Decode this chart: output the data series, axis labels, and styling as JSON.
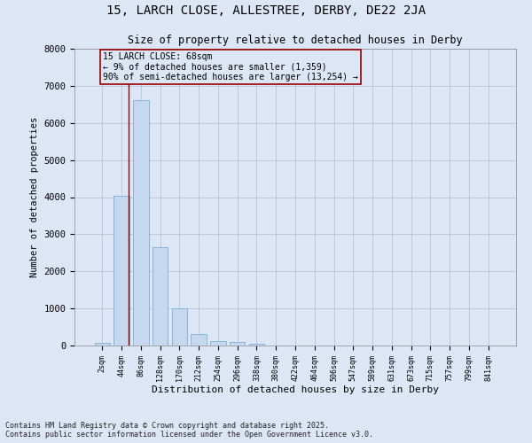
{
  "title_line1": "15, LARCH CLOSE, ALLESTREE, DERBY, DE22 2JA",
  "title_line2": "Size of property relative to detached houses in Derby",
  "xlabel": "Distribution of detached houses by size in Derby",
  "ylabel": "Number of detached properties",
  "categories": [
    "2sqm",
    "44sqm",
    "86sqm",
    "128sqm",
    "170sqm",
    "212sqm",
    "254sqm",
    "296sqm",
    "338sqm",
    "380sqm",
    "422sqm",
    "464sqm",
    "506sqm",
    "547sqm",
    "589sqm",
    "631sqm",
    "673sqm",
    "715sqm",
    "757sqm",
    "799sqm",
    "841sqm"
  ],
  "values": [
    75,
    4040,
    6620,
    2650,
    1010,
    320,
    120,
    85,
    50,
    0,
    0,
    0,
    0,
    0,
    0,
    0,
    0,
    0,
    0,
    0,
    0
  ],
  "bar_color": "#c5d8f0",
  "bar_edge_color": "#7aafd4",
  "grid_color": "#b0bcd8",
  "bg_color": "#dce6f5",
  "vline_x": 1.35,
  "vline_color": "#990000",
  "annotation_text": "15 LARCH CLOSE: 68sqm\n← 9% of detached houses are smaller (1,359)\n90% of semi-detached houses are larger (13,254) →",
  "annotation_box_color": "#990000",
  "ylim": [
    0,
    8000
  ],
  "yticks": [
    0,
    1000,
    2000,
    3000,
    4000,
    5000,
    6000,
    7000,
    8000
  ],
  "footer_line1": "Contains HM Land Registry data © Crown copyright and database right 2025.",
  "footer_line2": "Contains public sector information licensed under the Open Government Licence v3.0.",
  "figsize": [
    6.0,
    5.0
  ],
  "dpi": 100
}
